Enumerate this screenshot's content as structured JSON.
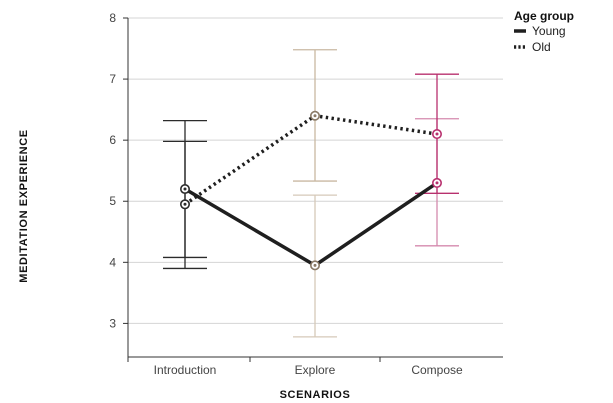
{
  "chart_data": {
    "type": "line",
    "xlabel": "SCENARIOS",
    "ylabel": "MEDITATION EXPERIENCE",
    "categories": [
      "Introduction",
      "Explore",
      "Compose"
    ],
    "ylim": [
      2.45,
      8
    ],
    "yticks": [
      3,
      4,
      5,
      6,
      7,
      8
    ],
    "grid": true,
    "legend": {
      "title": "Age group",
      "position": "top-right"
    },
    "series": [
      {
        "name": "Young",
        "style": "solid",
        "values": [
          5.2,
          3.95,
          5.3
        ],
        "error_low": [
          4.08,
          2.78,
          4.27
        ],
        "error_high": [
          6.32,
          5.1,
          6.35
        ]
      },
      {
        "name": "Old",
        "style": "dotted",
        "values": [
          4.95,
          6.4,
          6.1
        ],
        "error_low": [
          3.9,
          5.33,
          5.13
        ],
        "error_high": [
          5.98,
          7.48,
          7.08
        ]
      }
    ],
    "category_colors": [
      "#2b2b2b",
      "#c9b8a2",
      "#b8306e"
    ],
    "category_colors_light": [
      "#2b2b2b",
      "#d6c9b8",
      "#d48aae"
    ],
    "line_color": "#1f1f1f"
  }
}
